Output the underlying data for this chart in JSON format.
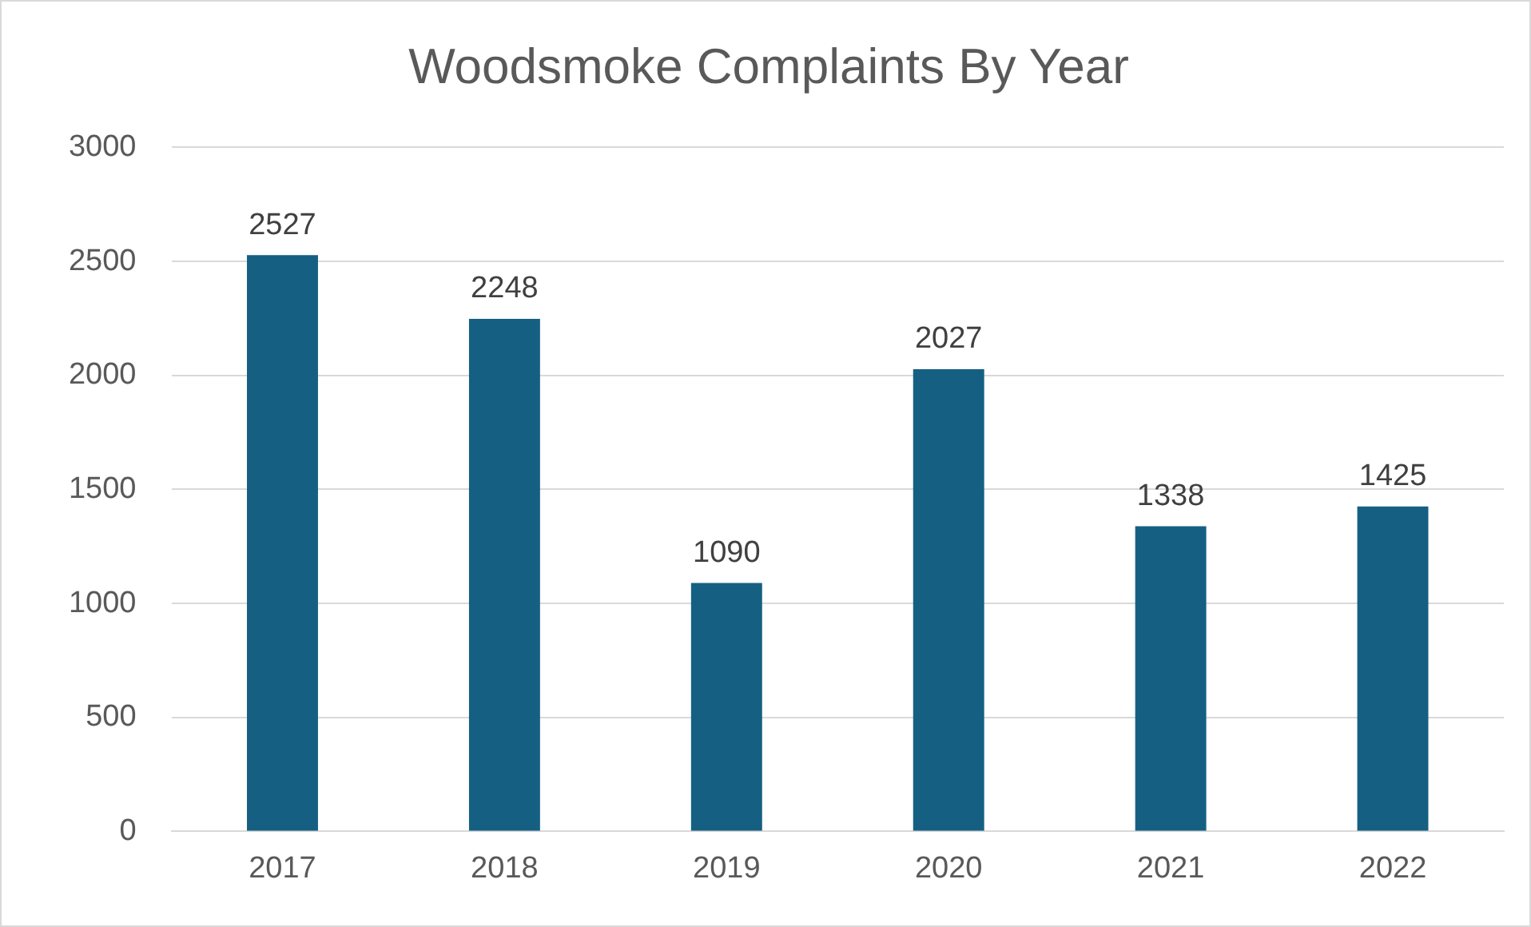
{
  "chart_data": {
    "type": "bar",
    "title": "Woodsmoke Complaints By Year",
    "categories": [
      "2017",
      "2018",
      "2019",
      "2020",
      "2021",
      "2022"
    ],
    "values": [
      2527,
      2248,
      1090,
      2027,
      1338,
      1425
    ],
    "color": "#156082",
    "ylim": [
      0,
      3000
    ],
    "yticks": [
      0,
      500,
      1000,
      1500,
      2000,
      2500,
      3000
    ],
    "grid": "y",
    "data_labels": true,
    "legend": false
  }
}
